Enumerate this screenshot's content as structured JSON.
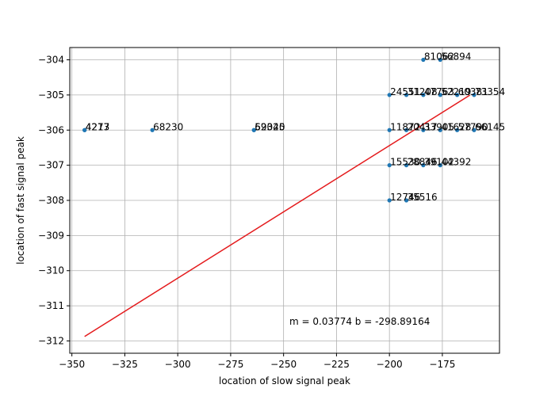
{
  "chart_data": {
    "type": "scatter",
    "title": "",
    "xlabel": "location of slow signal peak",
    "ylabel": "location of fast signal peak",
    "xlim": [
      -351,
      -148
    ],
    "ylim": [
      -312.35,
      -303.65
    ],
    "grid": true,
    "x_ticks": [
      -350,
      -325,
      -300,
      -275,
      -250,
      -225,
      -200,
      -175
    ],
    "x_tick_labels": [
      "−350",
      "−325",
      "−300",
      "−275",
      "−250",
      "−225",
      "−200",
      "−175"
    ],
    "y_ticks": [
      -304,
      -305,
      -306,
      -307,
      -308,
      -309,
      -310,
      -311,
      -312
    ],
    "y_tick_labels": [
      "−304",
      "−305",
      "−306",
      "−307",
      "−308",
      "−309",
      "−310",
      "−311",
      "−312"
    ],
    "points": [
      {
        "x": -344,
        "y": -306,
        "label": "4273"
      },
      {
        "x": -344,
        "y": -306,
        "label": "4217"
      },
      {
        "x": -312,
        "y": -306,
        "label": "68230"
      },
      {
        "x": -264,
        "y": -306,
        "label": "59345"
      },
      {
        "x": -264,
        "y": -306,
        "label": "62020"
      },
      {
        "x": -184,
        "y": -304,
        "label": "81062"
      },
      {
        "x": -176,
        "y": -304,
        "label": "56894"
      },
      {
        "x": -200,
        "y": -305,
        "label": "24551"
      },
      {
        "x": -192,
        "y": -305,
        "label": "31208"
      },
      {
        "x": -184,
        "y": -305,
        "label": "47763"
      },
      {
        "x": -176,
        "y": -305,
        "label": "52219"
      },
      {
        "x": -168,
        "y": -305,
        "label": "60381"
      },
      {
        "x": -160,
        "y": -305,
        "label": "73354"
      },
      {
        "x": -200,
        "y": -306,
        "label": "11872"
      },
      {
        "x": -192,
        "y": -306,
        "label": "20417"
      },
      {
        "x": -184,
        "y": -306,
        "label": "33905"
      },
      {
        "x": -176,
        "y": -306,
        "label": "41628"
      },
      {
        "x": -168,
        "y": -306,
        "label": "57790"
      },
      {
        "x": -160,
        "y": -306,
        "label": "66145"
      },
      {
        "x": -200,
        "y": -307,
        "label": "15530"
      },
      {
        "x": -192,
        "y": -307,
        "label": "28846"
      },
      {
        "x": -184,
        "y": -307,
        "label": "39102"
      },
      {
        "x": -176,
        "y": -307,
        "label": "44392"
      },
      {
        "x": -200,
        "y": -308,
        "label": "12746"
      },
      {
        "x": -192,
        "y": -308,
        "label": "35516"
      }
    ],
    "fit_line": {
      "slope": 0.03774,
      "intercept": -298.89164,
      "x_range": [
        -344,
        -162
      ],
      "color": "#e41a1c"
    },
    "annotation": "m = 0.03774 b = -298.89164",
    "point_color": "#1f77b4"
  }
}
